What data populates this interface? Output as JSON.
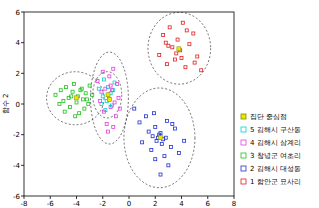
{
  "chart_data": {
    "type": "scatter",
    "y_label": "함수 2",
    "xlim": [
      -8,
      8
    ],
    "ylim": [
      -6,
      6
    ],
    "xticks": [
      -8,
      -6,
      -4,
      -2,
      0,
      2,
      4,
      6,
      8
    ],
    "yticks": [
      -6,
      -4,
      -2,
      0,
      2,
      4,
      6
    ],
    "legend": "right",
    "marker": "square",
    "series": [
      {
        "name": "집단 중심점",
        "color": "#e8e800",
        "marker": "filled-square",
        "x": [
          -4.0,
          -1.5,
          -1.6,
          2.4,
          3.8
        ],
        "values": [
          0.4,
          0.3,
          0.6,
          -2.2,
          3.6
        ]
      },
      {
        "name": "5 김해시 구산동",
        "color": "#00d0d0",
        "x": [
          -2.3,
          -2.0,
          -1.9,
          -1.7,
          -1.6,
          -1.4,
          -1.3,
          -1.1,
          -1.8,
          -1.5,
          -2.1,
          -1.2
        ],
        "values": [
          1.0,
          0.5,
          1.6,
          0.2,
          1.1,
          0.7,
          -0.1,
          1.4,
          -0.4,
          0.3,
          0.0,
          0.9
        ]
      },
      {
        "name": "4 김해시 삼계리",
        "color": "#e040e0",
        "x": [
          -2.4,
          -2.2,
          -2.0,
          -1.9,
          -1.8,
          -1.7,
          -1.6,
          -1.5,
          -1.4,
          -1.3,
          -1.2,
          -1.1,
          -1.0,
          -0.9,
          -0.8,
          -1.6,
          -2.1,
          -1.2,
          -1.4,
          -0.7
        ],
        "values": [
          1.5,
          0.2,
          2.1,
          -0.5,
          1.0,
          -1.3,
          0.6,
          1.8,
          -0.2,
          0.9,
          2.3,
          0.1,
          -0.8,
          1.3,
          0.4,
          -1.8,
          0.8,
          -1.5,
          1.2,
          -0.3
        ]
      },
      {
        "name": "3 창녕군 여초리",
        "color": "#20c020",
        "x": [
          -5.6,
          -5.2,
          -5.0,
          -4.8,
          -4.6,
          -4.5,
          -4.3,
          -4.2,
          -4.0,
          -3.9,
          -3.8,
          -3.6,
          -3.5,
          -3.4,
          -3.3,
          -3.1,
          -3.0,
          -4.4,
          -4.1,
          -3.7,
          -5.3,
          -4.9,
          -3.2,
          -2.8
        ],
        "values": [
          0.6,
          0.9,
          0.2,
          1.1,
          0.4,
          -0.2,
          0.8,
          1.3,
          0.1,
          0.5,
          -0.6,
          1.0,
          0.3,
          -0.3,
          0.7,
          0.0,
          1.2,
          0.5,
          -0.8,
          0.9,
          0.0,
          -0.5,
          0.3,
          0.6
        ]
      },
      {
        "name": "2 김해시 대성동",
        "color": "#2030d0",
        "x": [
          0.4,
          0.8,
          1.0,
          1.3,
          1.5,
          1.7,
          1.8,
          2.0,
          2.1,
          2.2,
          2.3,
          2.4,
          2.5,
          2.6,
          2.7,
          2.9,
          3.0,
          3.2,
          3.5,
          3.8,
          4.2,
          1.9,
          2.8,
          2.4,
          2.0,
          3.3
        ],
        "values": [
          -0.3,
          -1.2,
          -2.5,
          -0.8,
          -1.8,
          -3.0,
          -2.1,
          -1.5,
          -2.4,
          -2.2,
          -2.0,
          -1.9,
          -2.6,
          -2.3,
          -3.4,
          -1.1,
          -4.0,
          -2.8,
          -1.6,
          -3.2,
          -2.4,
          -0.6,
          -2.2,
          -4.6,
          -3.6,
          -1.3
        ]
      },
      {
        "name": "1 함안군 묘사리",
        "color": "#e02020",
        "x": [
          2.3,
          2.6,
          2.9,
          3.1,
          3.3,
          3.5,
          3.7,
          3.9,
          4.1,
          4.3,
          4.6,
          4.9,
          5.2,
          5.5,
          3.0,
          3.6,
          4.4,
          2.8,
          5.0,
          4.0
        ],
        "values": [
          3.2,
          4.5,
          2.6,
          5.0,
          3.7,
          2.9,
          4.2,
          3.5,
          5.3,
          2.4,
          3.9,
          4.6,
          3.1,
          2.2,
          3.8,
          3.3,
          4.8,
          4.0,
          2.7,
          3.0
        ]
      }
    ]
  }
}
